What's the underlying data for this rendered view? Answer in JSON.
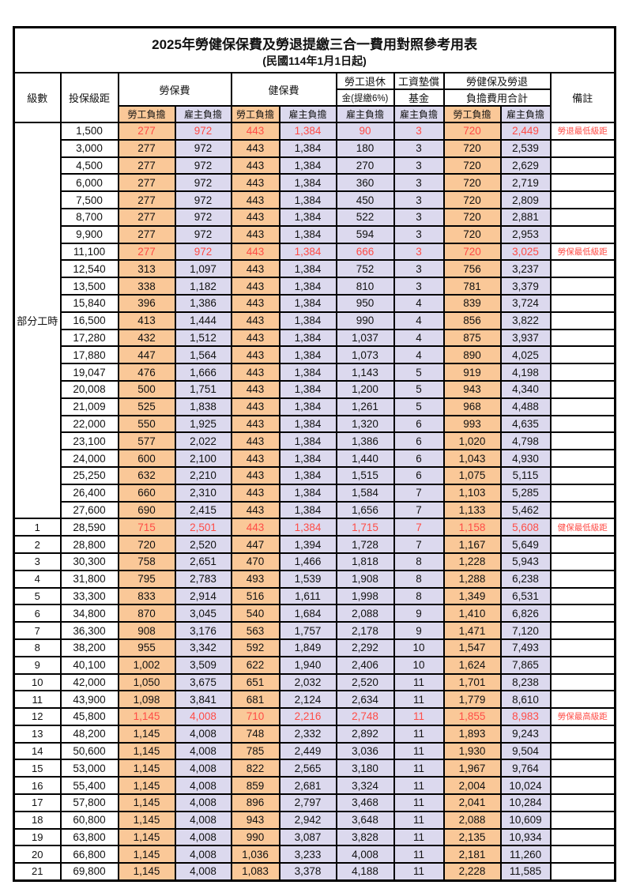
{
  "title": "2025年勞健保保費及勞退提繳三合一費用對照參考用表",
  "subtitle": "(民國114年1月1日起)",
  "header": {
    "level": "級數",
    "bracket": "投保級距",
    "labor_ins": "勞保費",
    "health_ins": "健保費",
    "pension_line1": "勞工退休",
    "pension_line2": "金(提繳6%)",
    "wage_fund_line1": "工資墊償",
    "wage_fund_line2": "基金",
    "total_line1": "勞健保及勞退",
    "total_line2": "負擔費用合計",
    "remark": "備註",
    "employee": "勞工負擔",
    "employer": "雇主負擔"
  },
  "part_time_label": "部分工時",
  "colors": {
    "employee_bg": "#FAC898",
    "employer_bg": "#DCD9EE",
    "highlight_red": "#FF4C46"
  },
  "rows": [
    {
      "group": "part_time",
      "level": "",
      "bracket": "1,500",
      "values": [
        "277",
        "972",
        "443",
        "1,384",
        "90",
        "3",
        "720",
        "2,449"
      ],
      "red": true,
      "remark": "勞退最低級距"
    },
    {
      "group": "part_time",
      "level": "",
      "bracket": "3,000",
      "values": [
        "277",
        "972",
        "443",
        "1,384",
        "180",
        "3",
        "720",
        "2,539"
      ],
      "red": false,
      "remark": ""
    },
    {
      "group": "part_time",
      "level": "",
      "bracket": "4,500",
      "values": [
        "277",
        "972",
        "443",
        "1,384",
        "270",
        "3",
        "720",
        "2,629"
      ],
      "red": false,
      "remark": ""
    },
    {
      "group": "part_time",
      "level": "",
      "bracket": "6,000",
      "values": [
        "277",
        "972",
        "443",
        "1,384",
        "360",
        "3",
        "720",
        "2,719"
      ],
      "red": false,
      "remark": ""
    },
    {
      "group": "part_time",
      "level": "",
      "bracket": "7,500",
      "values": [
        "277",
        "972",
        "443",
        "1,384",
        "450",
        "3",
        "720",
        "2,809"
      ],
      "red": false,
      "remark": ""
    },
    {
      "group": "part_time",
      "level": "",
      "bracket": "8,700",
      "values": [
        "277",
        "972",
        "443",
        "1,384",
        "522",
        "3",
        "720",
        "2,881"
      ],
      "red": false,
      "remark": ""
    },
    {
      "group": "part_time",
      "level": "",
      "bracket": "9,900",
      "values": [
        "277",
        "972",
        "443",
        "1,384",
        "594",
        "3",
        "720",
        "2,953"
      ],
      "red": false,
      "remark": ""
    },
    {
      "group": "part_time",
      "level": "",
      "bracket": "11,100",
      "values": [
        "277",
        "972",
        "443",
        "1,384",
        "666",
        "3",
        "720",
        "3,025"
      ],
      "red": true,
      "remark": "勞保最低級距"
    },
    {
      "group": "part_time",
      "level": "",
      "bracket": "12,540",
      "values": [
        "313",
        "1,097",
        "443",
        "1,384",
        "752",
        "3",
        "756",
        "3,237"
      ],
      "red": false,
      "remark": ""
    },
    {
      "group": "part_time",
      "level": "",
      "bracket": "13,500",
      "values": [
        "338",
        "1,182",
        "443",
        "1,384",
        "810",
        "3",
        "781",
        "3,379"
      ],
      "red": false,
      "remark": ""
    },
    {
      "group": "part_time",
      "level": "",
      "bracket": "15,840",
      "values": [
        "396",
        "1,386",
        "443",
        "1,384",
        "950",
        "4",
        "839",
        "3,724"
      ],
      "red": false,
      "remark": ""
    },
    {
      "group": "part_time",
      "level": "",
      "bracket": "16,500",
      "values": [
        "413",
        "1,444",
        "443",
        "1,384",
        "990",
        "4",
        "856",
        "3,822"
      ],
      "red": false,
      "remark": ""
    },
    {
      "group": "part_time",
      "level": "",
      "bracket": "17,280",
      "values": [
        "432",
        "1,512",
        "443",
        "1,384",
        "1,037",
        "4",
        "875",
        "3,937"
      ],
      "red": false,
      "remark": ""
    },
    {
      "group": "part_time",
      "level": "",
      "bracket": "17,880",
      "values": [
        "447",
        "1,564",
        "443",
        "1,384",
        "1,073",
        "4",
        "890",
        "4,025"
      ],
      "red": false,
      "remark": ""
    },
    {
      "group": "part_time",
      "level": "",
      "bracket": "19,047",
      "values": [
        "476",
        "1,666",
        "443",
        "1,384",
        "1,143",
        "5",
        "919",
        "4,198"
      ],
      "red": false,
      "remark": ""
    },
    {
      "group": "part_time",
      "level": "",
      "bracket": "20,008",
      "values": [
        "500",
        "1,751",
        "443",
        "1,384",
        "1,200",
        "5",
        "943",
        "4,340"
      ],
      "red": false,
      "remark": ""
    },
    {
      "group": "part_time",
      "level": "",
      "bracket": "21,009",
      "values": [
        "525",
        "1,838",
        "443",
        "1,384",
        "1,261",
        "5",
        "968",
        "4,488"
      ],
      "red": false,
      "remark": ""
    },
    {
      "group": "part_time",
      "level": "",
      "bracket": "22,000",
      "values": [
        "550",
        "1,925",
        "443",
        "1,384",
        "1,320",
        "6",
        "993",
        "4,635"
      ],
      "red": false,
      "remark": ""
    },
    {
      "group": "part_time",
      "level": "",
      "bracket": "23,100",
      "values": [
        "577",
        "2,022",
        "443",
        "1,384",
        "1,386",
        "6",
        "1,020",
        "4,798"
      ],
      "red": false,
      "remark": ""
    },
    {
      "group": "part_time",
      "level": "",
      "bracket": "24,000",
      "values": [
        "600",
        "2,100",
        "443",
        "1,384",
        "1,440",
        "6",
        "1,043",
        "4,930"
      ],
      "red": false,
      "remark": ""
    },
    {
      "group": "part_time",
      "level": "",
      "bracket": "25,250",
      "values": [
        "632",
        "2,210",
        "443",
        "1,384",
        "1,515",
        "6",
        "1,075",
        "5,115"
      ],
      "red": false,
      "remark": ""
    },
    {
      "group": "part_time",
      "level": "",
      "bracket": "26,400",
      "values": [
        "660",
        "2,310",
        "443",
        "1,384",
        "1,584",
        "7",
        "1,103",
        "5,285"
      ],
      "red": false,
      "remark": ""
    },
    {
      "group": "part_time",
      "level": "",
      "bracket": "27,600",
      "values": [
        "690",
        "2,415",
        "443",
        "1,384",
        "1,656",
        "7",
        "1,133",
        "5,462"
      ],
      "red": false,
      "remark": ""
    },
    {
      "group": "level",
      "level": "1",
      "bracket": "28,590",
      "values": [
        "715",
        "2,501",
        "443",
        "1,384",
        "1,715",
        "7",
        "1,158",
        "5,608"
      ],
      "red": true,
      "remark": "健保最低級距"
    },
    {
      "group": "level",
      "level": "2",
      "bracket": "28,800",
      "values": [
        "720",
        "2,520",
        "447",
        "1,394",
        "1,728",
        "7",
        "1,167",
        "5,649"
      ],
      "red": false,
      "remark": ""
    },
    {
      "group": "level",
      "level": "3",
      "bracket": "30,300",
      "values": [
        "758",
        "2,651",
        "470",
        "1,466",
        "1,818",
        "8",
        "1,228",
        "5,943"
      ],
      "red": false,
      "remark": ""
    },
    {
      "group": "level",
      "level": "4",
      "bracket": "31,800",
      "values": [
        "795",
        "2,783",
        "493",
        "1,539",
        "1,908",
        "8",
        "1,288",
        "6,238"
      ],
      "red": false,
      "remark": ""
    },
    {
      "group": "level",
      "level": "5",
      "bracket": "33,300",
      "values": [
        "833",
        "2,914",
        "516",
        "1,611",
        "1,998",
        "8",
        "1,349",
        "6,531"
      ],
      "red": false,
      "remark": ""
    },
    {
      "group": "level",
      "level": "6",
      "bracket": "34,800",
      "values": [
        "870",
        "3,045",
        "540",
        "1,684",
        "2,088",
        "9",
        "1,410",
        "6,826"
      ],
      "red": false,
      "remark": ""
    },
    {
      "group": "level",
      "level": "7",
      "bracket": "36,300",
      "values": [
        "908",
        "3,176",
        "563",
        "1,757",
        "2,178",
        "9",
        "1,471",
        "7,120"
      ],
      "red": false,
      "remark": ""
    },
    {
      "group": "level",
      "level": "8",
      "bracket": "38,200",
      "values": [
        "955",
        "3,342",
        "592",
        "1,849",
        "2,292",
        "10",
        "1,547",
        "7,493"
      ],
      "red": false,
      "remark": ""
    },
    {
      "group": "level",
      "level": "9",
      "bracket": "40,100",
      "values": [
        "1,002",
        "3,509",
        "622",
        "1,940",
        "2,406",
        "10",
        "1,624",
        "7,865"
      ],
      "red": false,
      "remark": ""
    },
    {
      "group": "level",
      "level": "10",
      "bracket": "42,000",
      "values": [
        "1,050",
        "3,675",
        "651",
        "2,032",
        "2,520",
        "11",
        "1,701",
        "8,238"
      ],
      "red": false,
      "remark": ""
    },
    {
      "group": "level",
      "level": "11",
      "bracket": "43,900",
      "values": [
        "1,098",
        "3,841",
        "681",
        "2,124",
        "2,634",
        "11",
        "1,779",
        "8,610"
      ],
      "red": false,
      "remark": ""
    },
    {
      "group": "level",
      "level": "12",
      "bracket": "45,800",
      "values": [
        "1,145",
        "4,008",
        "710",
        "2,216",
        "2,748",
        "11",
        "1,855",
        "8,983"
      ],
      "red": true,
      "remark": "勞保最高級距"
    },
    {
      "group": "level",
      "level": "13",
      "bracket": "48,200",
      "values": [
        "1,145",
        "4,008",
        "748",
        "2,332",
        "2,892",
        "11",
        "1,893",
        "9,243"
      ],
      "red": false,
      "remark": ""
    },
    {
      "group": "level",
      "level": "14",
      "bracket": "50,600",
      "values": [
        "1,145",
        "4,008",
        "785",
        "2,449",
        "3,036",
        "11",
        "1,930",
        "9,504"
      ],
      "red": false,
      "remark": ""
    },
    {
      "group": "level",
      "level": "15",
      "bracket": "53,000",
      "values": [
        "1,145",
        "4,008",
        "822",
        "2,565",
        "3,180",
        "11",
        "1,967",
        "9,764"
      ],
      "red": false,
      "remark": ""
    },
    {
      "group": "level",
      "level": "16",
      "bracket": "55,400",
      "values": [
        "1,145",
        "4,008",
        "859",
        "2,681",
        "3,324",
        "11",
        "2,004",
        "10,024"
      ],
      "red": false,
      "remark": ""
    },
    {
      "group": "level",
      "level": "17",
      "bracket": "57,800",
      "values": [
        "1,145",
        "4,008",
        "896",
        "2,797",
        "3,468",
        "11",
        "2,041",
        "10,284"
      ],
      "red": false,
      "remark": ""
    },
    {
      "group": "level",
      "level": "18",
      "bracket": "60,800",
      "values": [
        "1,145",
        "4,008",
        "943",
        "2,942",
        "3,648",
        "11",
        "2,088",
        "10,609"
      ],
      "red": false,
      "remark": ""
    },
    {
      "group": "level",
      "level": "19",
      "bracket": "63,800",
      "values": [
        "1,145",
        "4,008",
        "990",
        "3,087",
        "3,828",
        "11",
        "2,135",
        "10,934"
      ],
      "red": false,
      "remark": ""
    },
    {
      "group": "level",
      "level": "20",
      "bracket": "66,800",
      "values": [
        "1,145",
        "4,008",
        "1,036",
        "3,233",
        "4,008",
        "11",
        "2,181",
        "11,260"
      ],
      "red": false,
      "remark": ""
    },
    {
      "group": "level",
      "level": "21",
      "bracket": "69,800",
      "values": [
        "1,145",
        "4,008",
        "1,083",
        "3,378",
        "4,188",
        "11",
        "2,228",
        "11,585"
      ],
      "red": false,
      "remark": ""
    }
  ]
}
